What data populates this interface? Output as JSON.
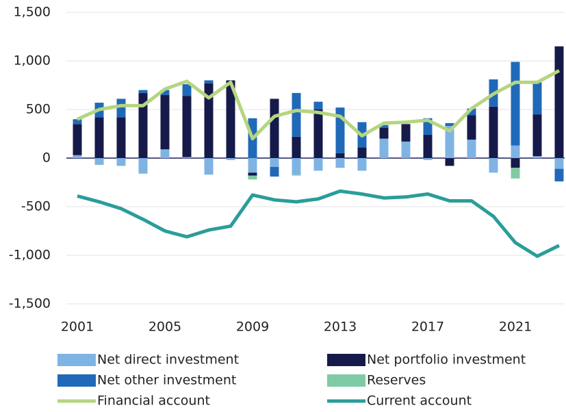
{
  "chart_data": {
    "type": "bar",
    "x": [
      2001,
      2002,
      2003,
      2004,
      2005,
      2006,
      2007,
      2008,
      2009,
      2010,
      2011,
      2012,
      2013,
      2014,
      2015,
      2016,
      2017,
      2018,
      2019,
      2020,
      2021,
      2022,
      2023
    ],
    "xticks": [
      2001,
      2005,
      2009,
      2013,
      2017,
      2021
    ],
    "ylim": [
      -1500,
      1500
    ],
    "yticks": [
      {
        "value": -1500,
        "label": "-1,500"
      },
      {
        "value": -1000,
        "label": "-1,000"
      },
      -500,
      0,
      500,
      {
        "value": 1000,
        "label": "1,000"
      },
      {
        "value": 1500,
        "label": "1,500"
      }
    ],
    "grid": true,
    "series": [
      {
        "name": "Net direct investment",
        "color": "#7fb3e3",
        "values": [
          30,
          -70,
          -80,
          -160,
          90,
          10,
          -170,
          -20,
          -150,
          -90,
          -170,
          -130,
          -100,
          -130,
          200,
          170,
          -20,
          330,
          190,
          -150,
          130,
          20,
          -110
        ]
      },
      {
        "name": "Net portfolio investment",
        "color": "#161a4a",
        "values": [
          320,
          420,
          420,
          670,
          560,
          630,
          770,
          800,
          -30,
          610,
          220,
          500,
          50,
          110,
          110,
          180,
          240,
          -80,
          250,
          530,
          -100,
          430,
          1150
        ]
      },
      {
        "name": "Net other investment",
        "color": "#2069b8",
        "values": [
          50,
          150,
          190,
          30,
          50,
          120,
          30,
          0,
          410,
          -100,
          450,
          80,
          470,
          260,
          30,
          0,
          170,
          30,
          70,
          280,
          860,
          330,
          -130
        ]
      },
      {
        "name": "Reserves",
        "color": "#7fcba6",
        "values": [
          0,
          0,
          0,
          0,
          0,
          0,
          0,
          0,
          -40,
          0,
          -10,
          0,
          0,
          0,
          0,
          0,
          0,
          0,
          0,
          0,
          -110,
          0,
          0
        ]
      },
      {
        "name": "Financial account",
        "type": "line",
        "color": "#b5d57f",
        "values": [
          400,
          500,
          540,
          540,
          710,
          790,
          620,
          780,
          200,
          430,
          490,
          470,
          430,
          230,
          360,
          370,
          390,
          280,
          510,
          660,
          780,
          780,
          900
        ]
      },
      {
        "name": "Current account",
        "type": "line",
        "color": "#2a9d9a",
        "values": [
          -390,
          -450,
          -520,
          -630,
          -750,
          -810,
          -740,
          -700,
          -380,
          -430,
          -450,
          -420,
          -340,
          -370,
          -410,
          -400,
          -370,
          -440,
          -440,
          -600,
          -870,
          -1010,
          -900
        ]
      }
    ]
  }
}
